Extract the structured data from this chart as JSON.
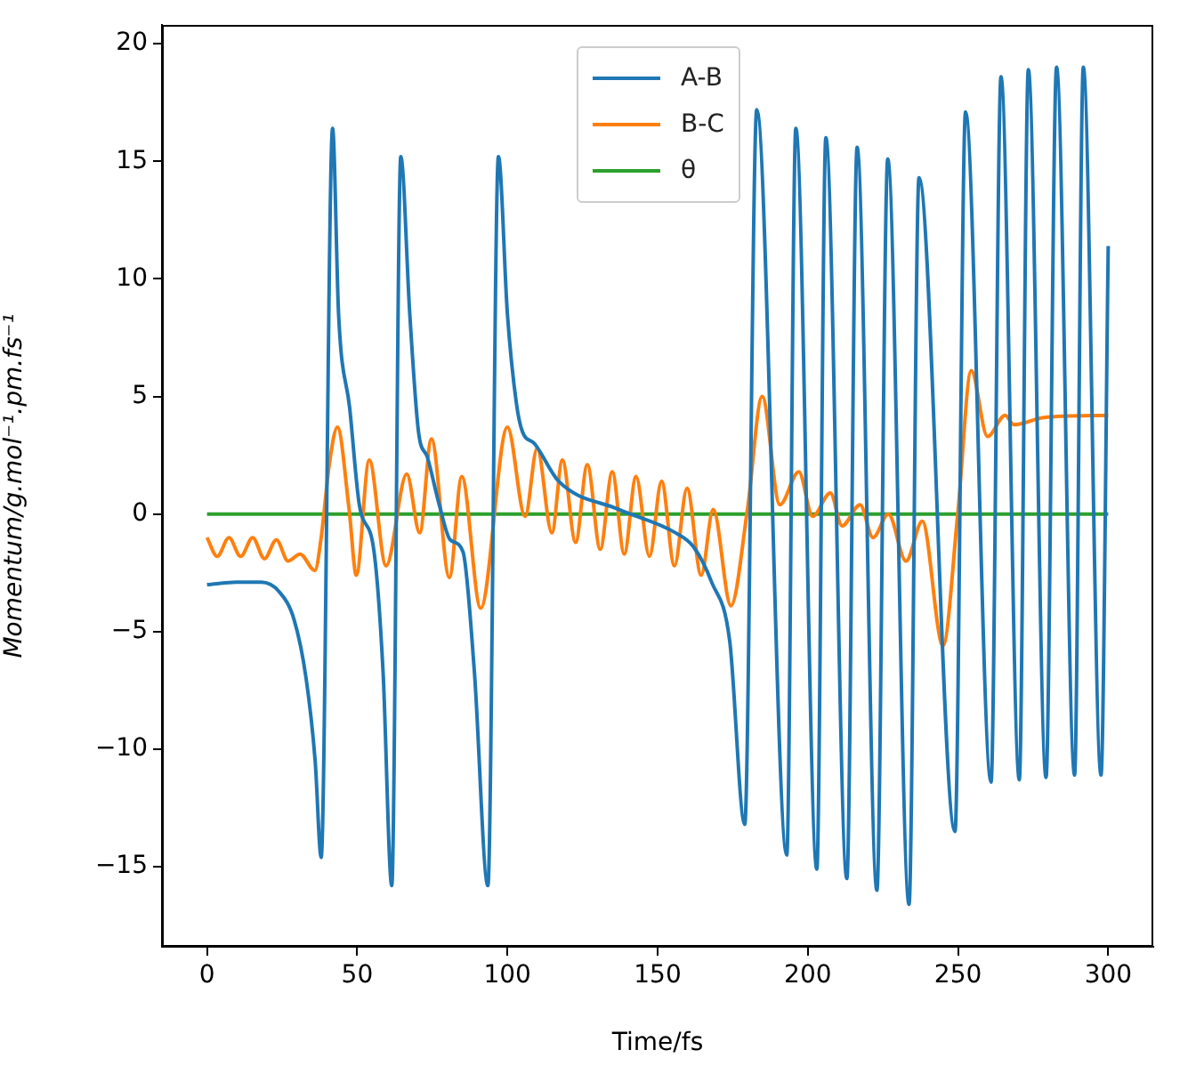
{
  "chart_data": {
    "type": "line",
    "xlabel": "Time/fs",
    "ylabel": "Momentum/g.mol⁻¹.pm.fs⁻¹",
    "xlim": [
      -15,
      315
    ],
    "ylim": [
      -18.4,
      20.8
    ],
    "xticks": [
      0,
      50,
      100,
      150,
      200,
      250,
      300
    ],
    "yticks": [
      -15,
      -10,
      -5,
      0,
      5,
      10,
      15,
      20
    ],
    "grid": false,
    "legend": "top",
    "marker": "none",
    "line_style": "solid",
    "series": [
      {
        "name": "A-B",
        "color": "#1f77b4",
        "x": [
          0,
          10,
          18,
          24,
          29,
          33,
          36,
          38,
          41.8,
          43.8,
          47.5,
          50.7,
          55.6,
          58.6,
          61.5,
          64.5,
          67.5,
          70.4,
          73.4,
          77.3,
          81,
          85.2,
          89,
          93.5,
          97,
          100,
          103,
          105,
          109,
          117,
          137,
          156,
          162,
          168,
          174,
          179,
          183,
          193,
          196,
          203,
          206,
          213,
          216.4,
          223,
          226.6,
          233.7,
          237,
          249,
          252.5,
          261,
          264.3,
          270.4,
          273.4,
          279.3,
          282.8,
          288.8,
          291.7,
          297.6,
          300
        ],
        "values": [
          -3.0,
          -2.9,
          -2.9,
          -3.3,
          -4.5,
          -7,
          -10.5,
          -14.6,
          16.4,
          8.5,
          4.5,
          0.4,
          -1.6,
          -6.7,
          -15.8,
          15.2,
          8.5,
          3.5,
          2.4,
          0.4,
          -1.1,
          -1.6,
          -6.7,
          -15.8,
          15.2,
          8.5,
          4.7,
          3.5,
          3.0,
          1.4,
          0.2,
          -0.8,
          -1.4,
          -2.9,
          -5.4,
          -13.2,
          17.2,
          -14.5,
          16.4,
          -15.1,
          16,
          -15.5,
          15.6,
          -16.0,
          15.1,
          -16.6,
          14.3,
          -13.5,
          17.1,
          -11.4,
          18.6,
          -11.3,
          18.9,
          -11.2,
          19,
          -11.1,
          19,
          -11.1,
          11.4
        ]
      },
      {
        "name": "B-C",
        "color": "#ff7f0e",
        "x": [
          0,
          3.4,
          7.3,
          11.2,
          15.2,
          19.1,
          23.1,
          27.0,
          31.0,
          35.9,
          37.9,
          40.8,
          43.4,
          47.3,
          49.7,
          54.0,
          59.6,
          66.5,
          70.8,
          74.7,
          80.7,
          84.8,
          91.1,
          100,
          105.9,
          109.9,
          114.8,
          118.3,
          122.7,
          126.6,
          130.9,
          134.9,
          138.9,
          142.8,
          147.3,
          151.3,
          155.6,
          159.8,
          164.5,
          168.5,
          174.4,
          179.9,
          184.8,
          190.7,
          197.0,
          201.6,
          207.5,
          211.4,
          217.4,
          221.7,
          226.8,
          232.7,
          238.1,
          245,
          249.9,
          254.4,
          259.8,
          265.7,
          268.6,
          278.5,
          300
        ],
        "values": [
          -1.0,
          -1.8,
          -1.0,
          -1.8,
          -1.0,
          -1.9,
          -1.1,
          -2.0,
          -1.7,
          -2.4,
          -1.1,
          2.2,
          3.7,
          0.2,
          -2.6,
          2.3,
          -2.2,
          1.7,
          -0.8,
          3.2,
          -2.7,
          1.6,
          -4.0,
          3.7,
          -0.1,
          2.8,
          -0.8,
          2.3,
          -1.2,
          2.1,
          -1.5,
          1.8,
          -1.7,
          1.6,
          -1.8,
          1.4,
          -2.2,
          1.1,
          -2.6,
          0.2,
          -3.9,
          0.2,
          5.0,
          0.4,
          1.8,
          -0.1,
          0.9,
          -0.5,
          0.4,
          -1.0,
          0.0,
          -2.0,
          -0.3,
          -5.6,
          0.0,
          6.1,
          3.3,
          4.2,
          3.8,
          4.1,
          4.2
        ]
      },
      {
        "name": "θ",
        "color": "#2ca02c",
        "x": [
          0,
          300
        ],
        "values": [
          0,
          0
        ]
      }
    ]
  }
}
